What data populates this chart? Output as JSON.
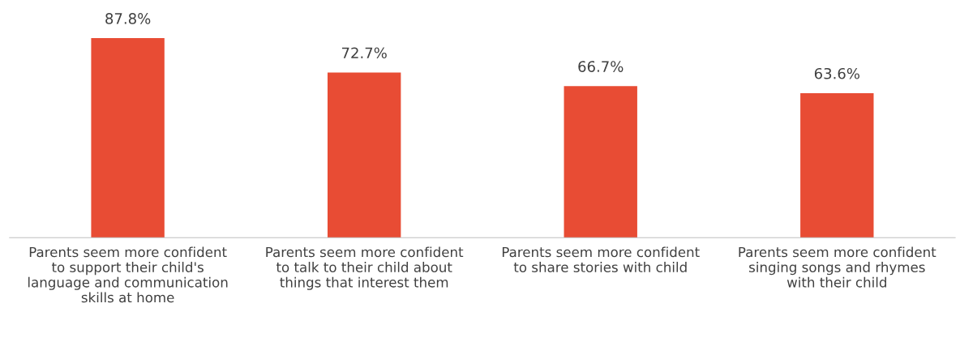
{
  "chart_data": {
    "type": "bar",
    "categories": [
      "Parents seem more confident\nto support their child's\nlanguage and communication\nskills at home",
      "Parents seem more confident\nto talk to their child about\nthings that interest them",
      "Parents seem more confident\nto share stories with child",
      "Parents seem more confident\nsinging songs and rhymes\nwith their child"
    ],
    "values": [
      87.8,
      72.7,
      66.7,
      63.6
    ],
    "color": "#e84c34",
    "value_labels": [
      "87.8%",
      "72.7%",
      "66.7%",
      "63.6%"
    ],
    "grid": false,
    "legend": false
  }
}
